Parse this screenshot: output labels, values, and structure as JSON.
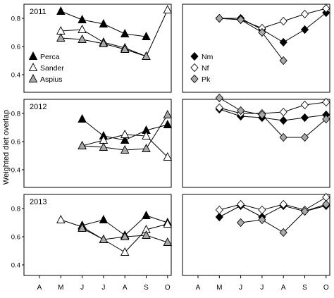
{
  "ylabel": "Weighted diet overlap",
  "months": [
    "A",
    "M",
    "J",
    "J",
    "A",
    "S",
    "O"
  ],
  "yticks": [
    "0.8",
    "0.6",
    "0.4"
  ],
  "legend_left": [
    {
      "name": "Perca",
      "marker": "tri-filled",
      "fill": "#000000"
    },
    {
      "name": "Sander",
      "marker": "tri-open",
      "fill": "#ffffff"
    },
    {
      "name": "Aspius",
      "marker": "tri-grey",
      "fill": "#a9a9a9"
    }
  ],
  "legend_right": [
    {
      "name": "Nm",
      "marker": "diamond-filled",
      "fill": "#000000"
    },
    {
      "name": "Nf",
      "marker": "diamond-open",
      "fill": "#ffffff"
    },
    {
      "name": "Pk",
      "marker": "diamond-grey",
      "fill": "#a9a9a9"
    }
  ],
  "chart_data": [
    {
      "type": "line",
      "title": "2011",
      "panel": "left",
      "row": 0,
      "x": [
        "M",
        "J",
        "J",
        "A",
        "S",
        "O"
      ],
      "series": [
        {
          "name": "Perca",
          "marker": "tri-filled",
          "values": [
            0.85,
            0.79,
            0.76,
            0.69,
            0.67,
            null
          ]
        },
        {
          "name": "Sander",
          "marker": "tri-open",
          "values": [
            0.71,
            0.72,
            0.63,
            0.59,
            0.53,
            0.86
          ]
        },
        {
          "name": "Aspius",
          "marker": "tri-grey",
          "values": [
            0.66,
            0.65,
            0.62,
            0.58,
            0.53,
            null
          ]
        }
      ],
      "ylim": [
        0.4,
        0.9
      ]
    },
    {
      "type": "line",
      "title": "",
      "panel": "right",
      "row": 0,
      "x": [
        "M",
        "J",
        "J",
        "A",
        "S",
        "O"
      ],
      "series": [
        {
          "name": "Nm",
          "marker": "diamond-filled",
          "values": [
            0.8,
            0.8,
            0.72,
            0.63,
            0.72,
            0.84
          ]
        },
        {
          "name": "Nf",
          "marker": "diamond-open",
          "values": [
            0.8,
            0.79,
            0.73,
            0.78,
            0.83,
            0.87
          ]
        },
        {
          "name": "Pk",
          "marker": "diamond-grey",
          "values": [
            0.8,
            0.79,
            0.7,
            0.5,
            null,
            null
          ]
        }
      ],
      "ylim": [
        0.4,
        0.9
      ]
    },
    {
      "type": "line",
      "title": "2012",
      "panel": "left",
      "row": 1,
      "x": [
        "M",
        "J",
        "J",
        "A",
        "S",
        "O"
      ],
      "series": [
        {
          "name": "Perca",
          "marker": "tri-filled",
          "values": [
            null,
            0.76,
            0.64,
            0.61,
            0.68,
            0.72
          ]
        },
        {
          "name": "Sander",
          "marker": "tri-open",
          "values": [
            null,
            0.57,
            0.61,
            0.65,
            0.64,
            0.49
          ]
        },
        {
          "name": "Aspius",
          "marker": "tri-grey",
          "values": [
            null,
            0.57,
            0.56,
            0.54,
            0.55,
            0.79
          ]
        }
      ],
      "ylim": [
        0.4,
        0.9
      ]
    },
    {
      "type": "line",
      "title": "",
      "panel": "right",
      "row": 1,
      "x": [
        "M",
        "J",
        "J",
        "A",
        "S",
        "O"
      ],
      "series": [
        {
          "name": "Nm",
          "marker": "diamond-filled",
          "values": [
            0.83,
            0.78,
            0.77,
            0.75,
            0.77,
            0.79
          ]
        },
        {
          "name": "Nf",
          "marker": "diamond-open",
          "values": [
            0.84,
            0.8,
            0.8,
            0.81,
            0.86,
            0.88
          ]
        },
        {
          "name": "Pk",
          "marker": "diamond-grey",
          "values": [
            0.91,
            0.82,
            0.79,
            0.63,
            0.63,
            0.76
          ]
        }
      ],
      "ylim": [
        0.4,
        0.9
      ]
    },
    {
      "type": "line",
      "title": "2013",
      "panel": "left",
      "row": 2,
      "x": [
        "M",
        "J",
        "J",
        "A",
        "S",
        "O"
      ],
      "series": [
        {
          "name": "Perca",
          "marker": "tri-filled",
          "values": [
            null,
            0.68,
            0.72,
            0.61,
            0.75,
            0.7
          ]
        },
        {
          "name": "Sander",
          "marker": "tri-open",
          "values": [
            0.72,
            0.67,
            0.58,
            0.49,
            0.65,
            0.69
          ]
        },
        {
          "name": "Aspius",
          "marker": "tri-grey",
          "values": [
            null,
            0.66,
            0.58,
            0.6,
            0.61,
            0.56
          ]
        }
      ],
      "ylim": [
        0.4,
        0.9
      ]
    },
    {
      "type": "line",
      "title": "",
      "panel": "right",
      "row": 2,
      "x": [
        "M",
        "J",
        "J",
        "A",
        "S",
        "O"
      ],
      "series": [
        {
          "name": "Nm",
          "marker": "diamond-filled",
          "values": [
            0.74,
            0.82,
            0.74,
            0.82,
            0.78,
            0.82
          ]
        },
        {
          "name": "Nf",
          "marker": "diamond-open",
          "values": [
            0.79,
            0.83,
            0.79,
            0.83,
            0.79,
            0.88
          ]
        },
        {
          "name": "Pk",
          "marker": "diamond-grey",
          "values": [
            null,
            0.7,
            0.72,
            0.63,
            0.78,
            0.83
          ]
        }
      ],
      "ylim": [
        0.4,
        0.9
      ]
    }
  ]
}
